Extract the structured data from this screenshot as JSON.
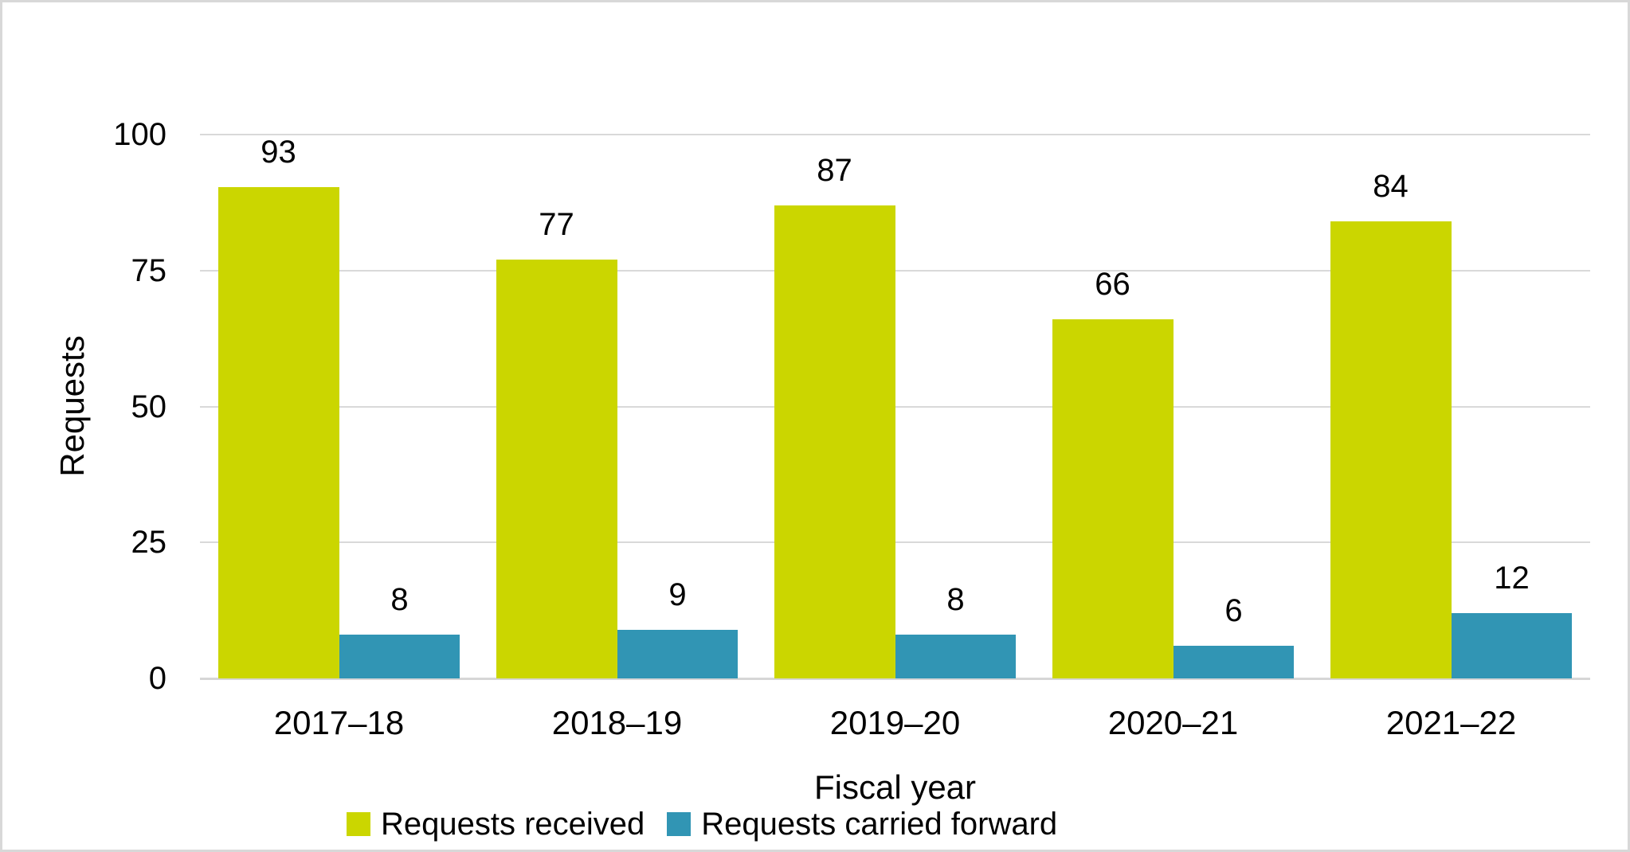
{
  "chart_data": {
    "type": "bar",
    "categories": [
      "2017–18",
      "2018–19",
      "2019–20",
      "2020–21",
      "2021–22"
    ],
    "series": [
      {
        "name": "Requests received",
        "color": "#cbd600",
        "values": [
          93,
          77,
          87,
          66,
          84
        ]
      },
      {
        "name": "Requests carried forward",
        "color": "#3195b4",
        "values": [
          8,
          9,
          8,
          6,
          12
        ]
      }
    ],
    "xlabel": "Fiscal year",
    "ylabel": "Requests",
    "ylim": [
      0,
      100
    ],
    "yticks": [
      0,
      25,
      50,
      75,
      100
    ],
    "grid": true,
    "legend_position": "bottom",
    "data_labels": true
  },
  "colors": {
    "grid": "#d9d9d9",
    "axis": "#d6d6d6",
    "text": "#000000",
    "background": "#ffffff",
    "border": "#d8d8d8"
  }
}
